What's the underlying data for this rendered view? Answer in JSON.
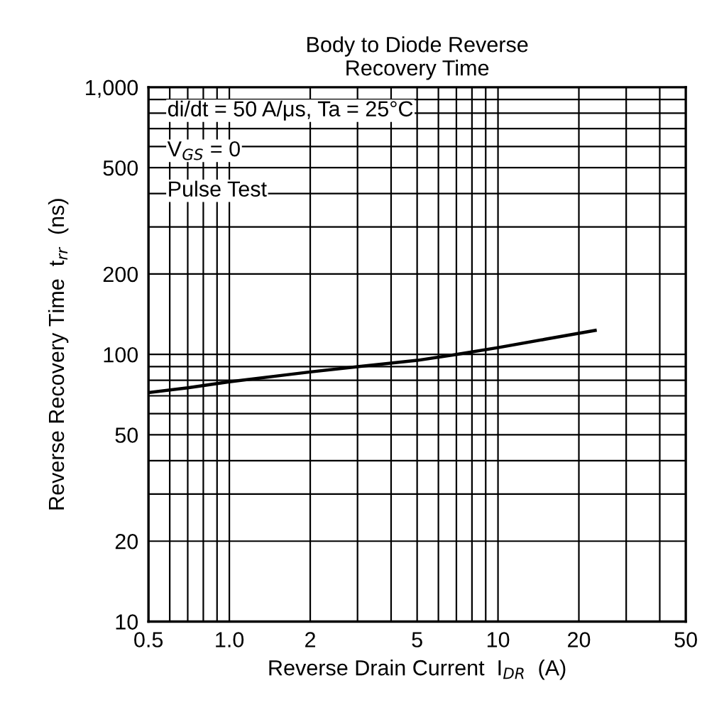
{
  "chart_data": {
    "type": "line",
    "title": "Body to Diode Reverse\nRecovery Time",
    "xlabel": "Reverse Drain Current  I$_{DR}$  (A)",
    "ylabel": "Reverse Recovery Time  t$_{rr}$  (ns)",
    "annotations": [
      "di/dt = 50 A/μs, Ta = 25°C",
      "V$_{GS}$ = 0",
      "Pulse Test"
    ],
    "log": "xy",
    "grid": true,
    "legend": false,
    "marker": "none",
    "line_style": "solid",
    "xlim": [
      0.5,
      50
    ],
    "ylim": [
      10,
      1000
    ],
    "xticks": [
      0.5,
      {
        "value": 0.6,
        "label": null
      },
      {
        "value": 0.7,
        "label": null
      },
      {
        "value": 0.8,
        "label": null
      },
      {
        "value": 0.9,
        "label": null
      },
      {
        "value": 1.0,
        "label": "1.0"
      },
      2,
      {
        "value": 3,
        "label": null
      },
      {
        "value": 4,
        "label": null
      },
      5,
      {
        "value": 6,
        "label": null
      },
      {
        "value": 7,
        "label": null
      },
      {
        "value": 8,
        "label": null
      },
      {
        "value": 9,
        "label": null
      },
      10,
      20,
      {
        "value": 30,
        "label": null
      },
      {
        "value": 40,
        "label": null
      },
      50
    ],
    "yticks": [
      10,
      20,
      {
        "value": 30,
        "label": null
      },
      {
        "value": 40,
        "label": null
      },
      50,
      {
        "value": 60,
        "label": null
      },
      {
        "value": 70,
        "label": null
      },
      {
        "value": 80,
        "label": null
      },
      {
        "value": 90,
        "label": null
      },
      100,
      200,
      {
        "value": 300,
        "label": null
      },
      {
        "value": 400,
        "label": null
      },
      500,
      {
        "value": 600,
        "label": null
      },
      {
        "value": 700,
        "label": null
      },
      {
        "value": 800,
        "label": null
      },
      {
        "value": 900,
        "label": null
      },
      {
        "value": 1000,
        "label": "1,000"
      }
    ],
    "series": [
      {
        "color": "#000000",
        "x": [
          0.5,
          0.7,
          1.0,
          1.5,
          2,
          3,
          5,
          7,
          10,
          15,
          23
        ],
        "values": [
          72,
          75,
          79,
          83,
          86,
          90,
          95,
          100,
          106,
          114,
          123
        ]
      }
    ]
  }
}
